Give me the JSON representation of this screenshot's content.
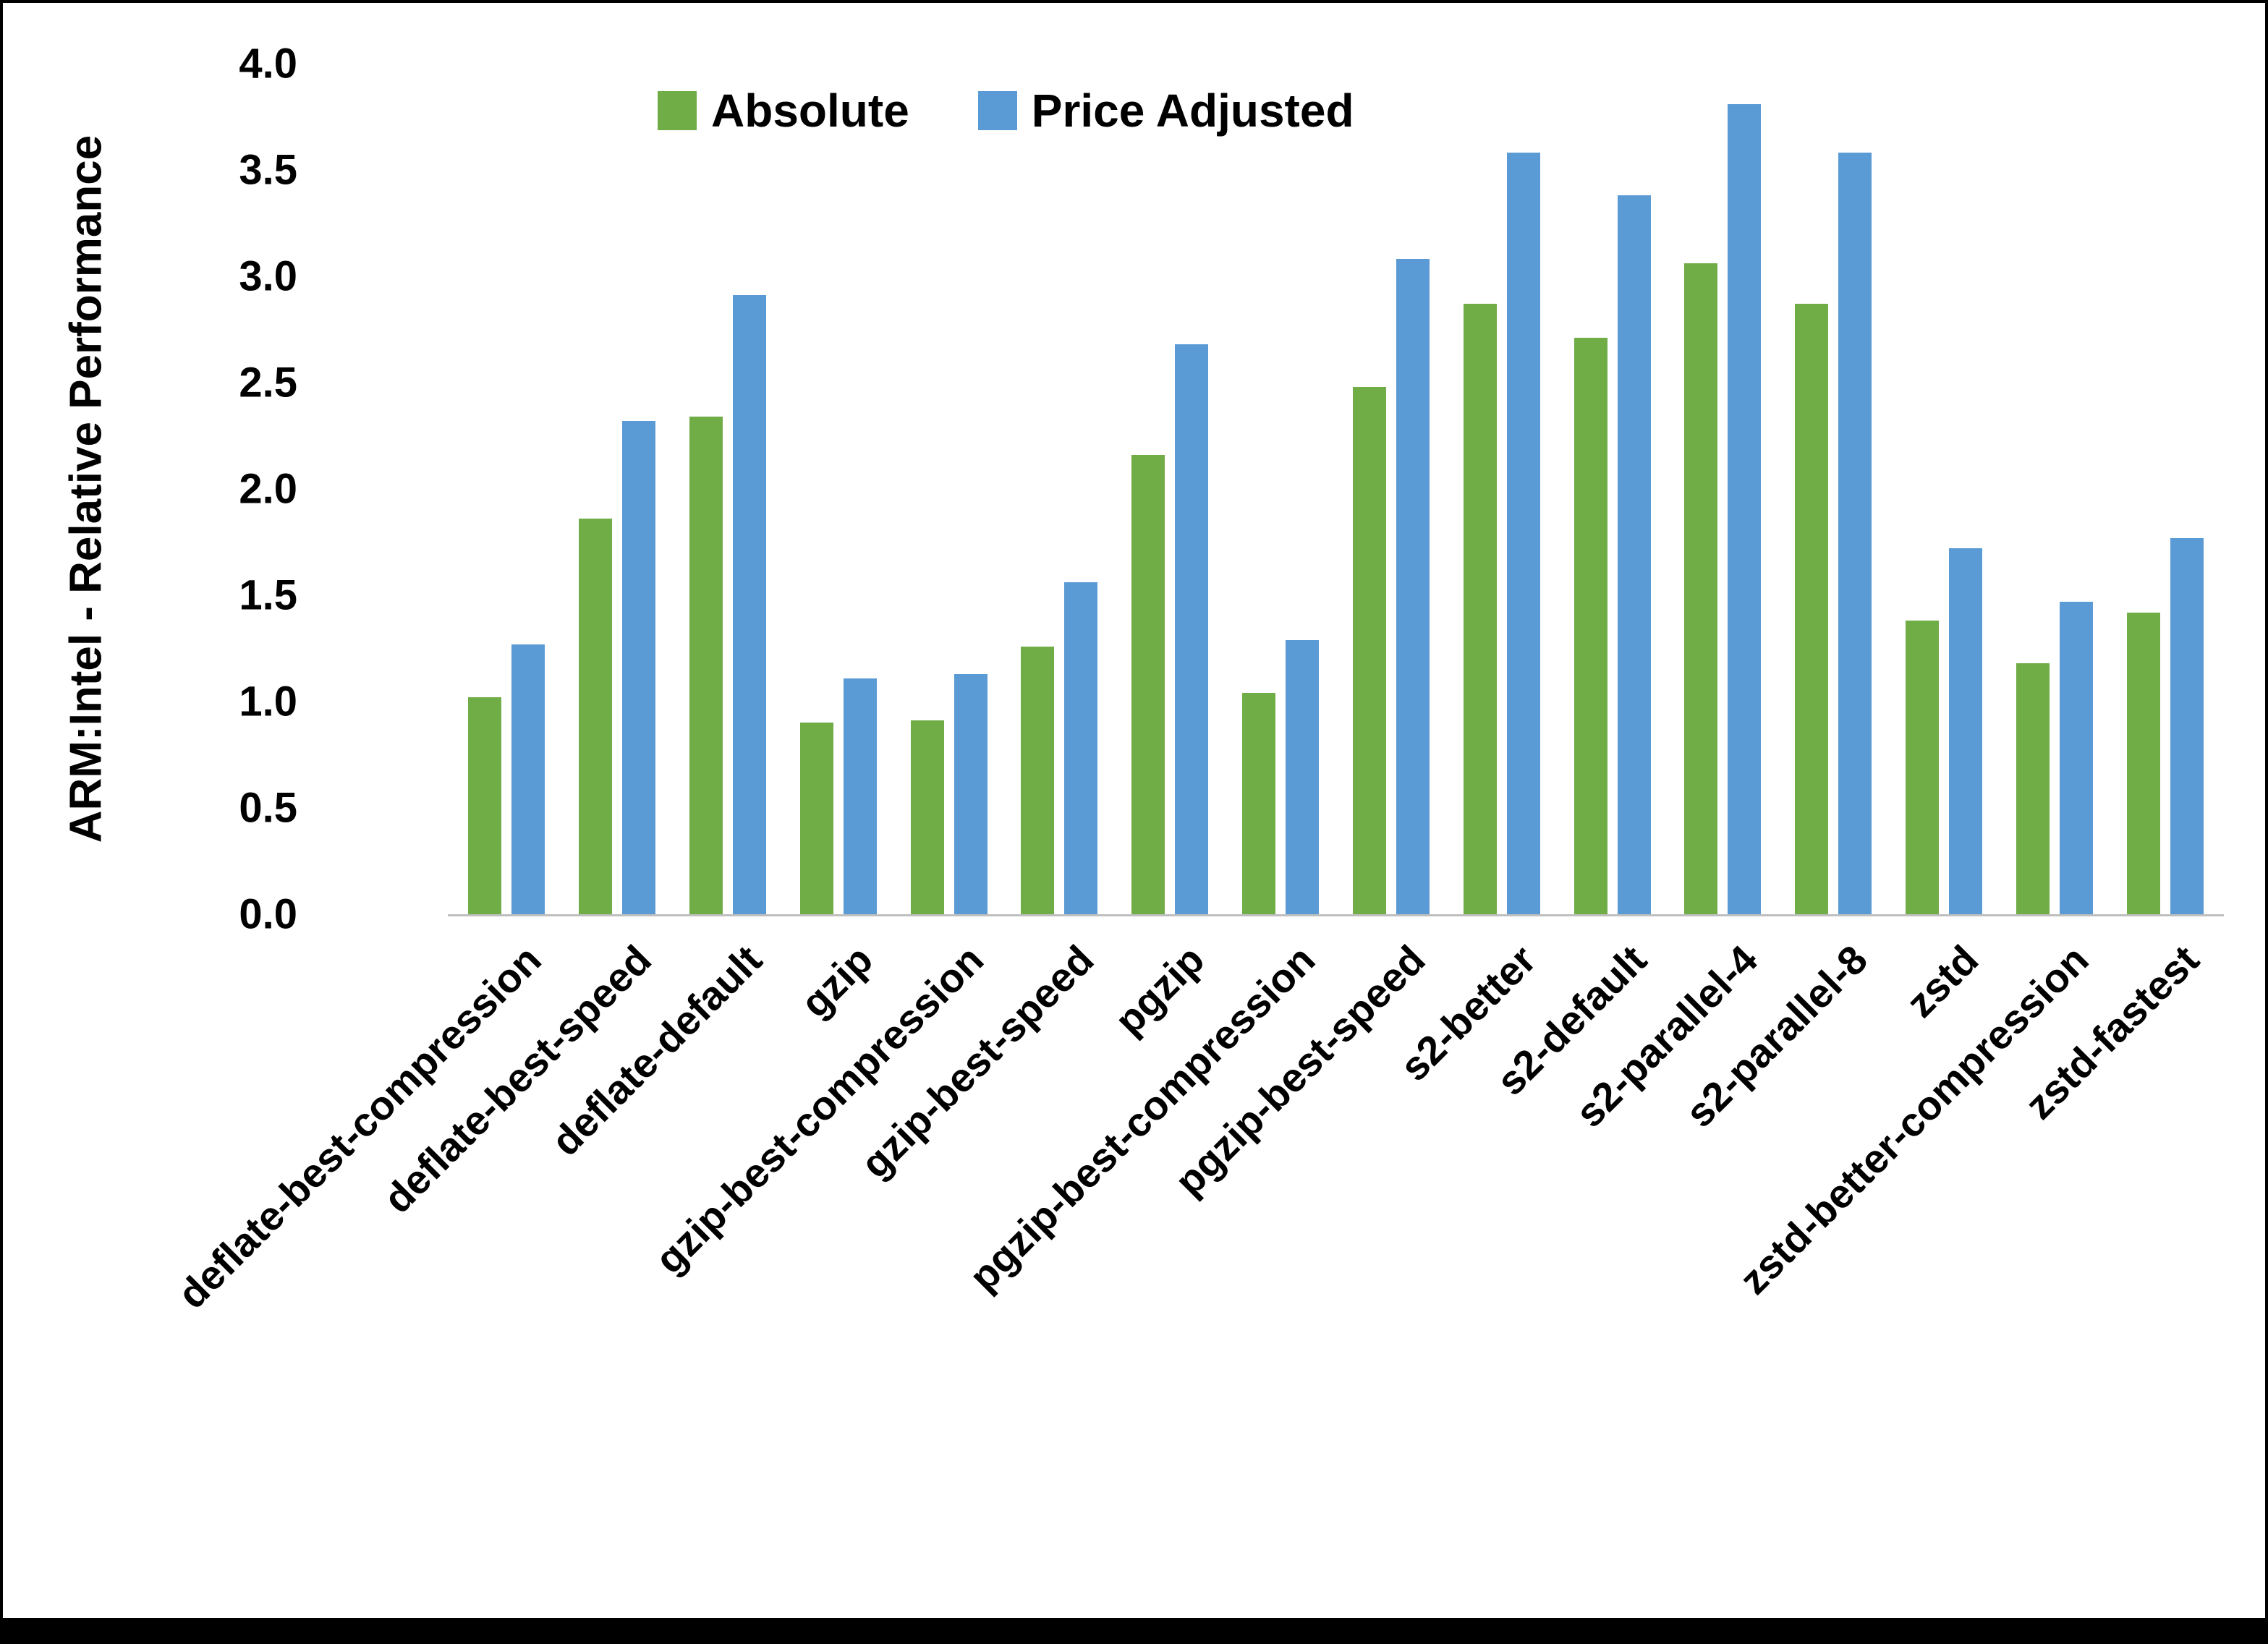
{
  "chart_data": {
    "type": "bar",
    "title": "",
    "xlabel": "",
    "ylabel": "ARM:Intel - Relative Performance",
    "ylim": [
      0,
      4.0
    ],
    "ytick_step": 0.5,
    "ytick_labels": [
      "0.0",
      "0.5",
      "1.0",
      "1.5",
      "2.0",
      "2.5",
      "3.0",
      "3.5",
      "4.0"
    ],
    "grid": false,
    "legend_position": "top",
    "categories": [
      "deflate-best-compression",
      "deflate-best-speed",
      "deflate-default",
      "gzip",
      "gzip-best-compression",
      "gzip-best-speed",
      "pgzip",
      "pgzip-best-compression",
      "pgzip-best-speed",
      "s2-better",
      "s2-default",
      "s2-parallel-4",
      "s2-parallel-8",
      "zstd",
      "zstd-better-compression",
      "zstd-fastest"
    ],
    "series": [
      {
        "name": "Absolute",
        "color": "#70AD47",
        "values": [
          1.02,
          1.86,
          2.34,
          0.9,
          0.91,
          1.26,
          2.16,
          1.04,
          2.48,
          2.87,
          2.71,
          3.06,
          2.87,
          1.38,
          1.18,
          1.42
        ]
      },
      {
        "name": "Price Adjusted",
        "color": "#5B9BD5",
        "values": [
          1.27,
          2.32,
          2.91,
          1.11,
          1.13,
          1.56,
          2.68,
          1.29,
          3.08,
          3.58,
          3.38,
          3.81,
          3.58,
          1.72,
          1.47,
          1.77
        ]
      }
    ]
  }
}
